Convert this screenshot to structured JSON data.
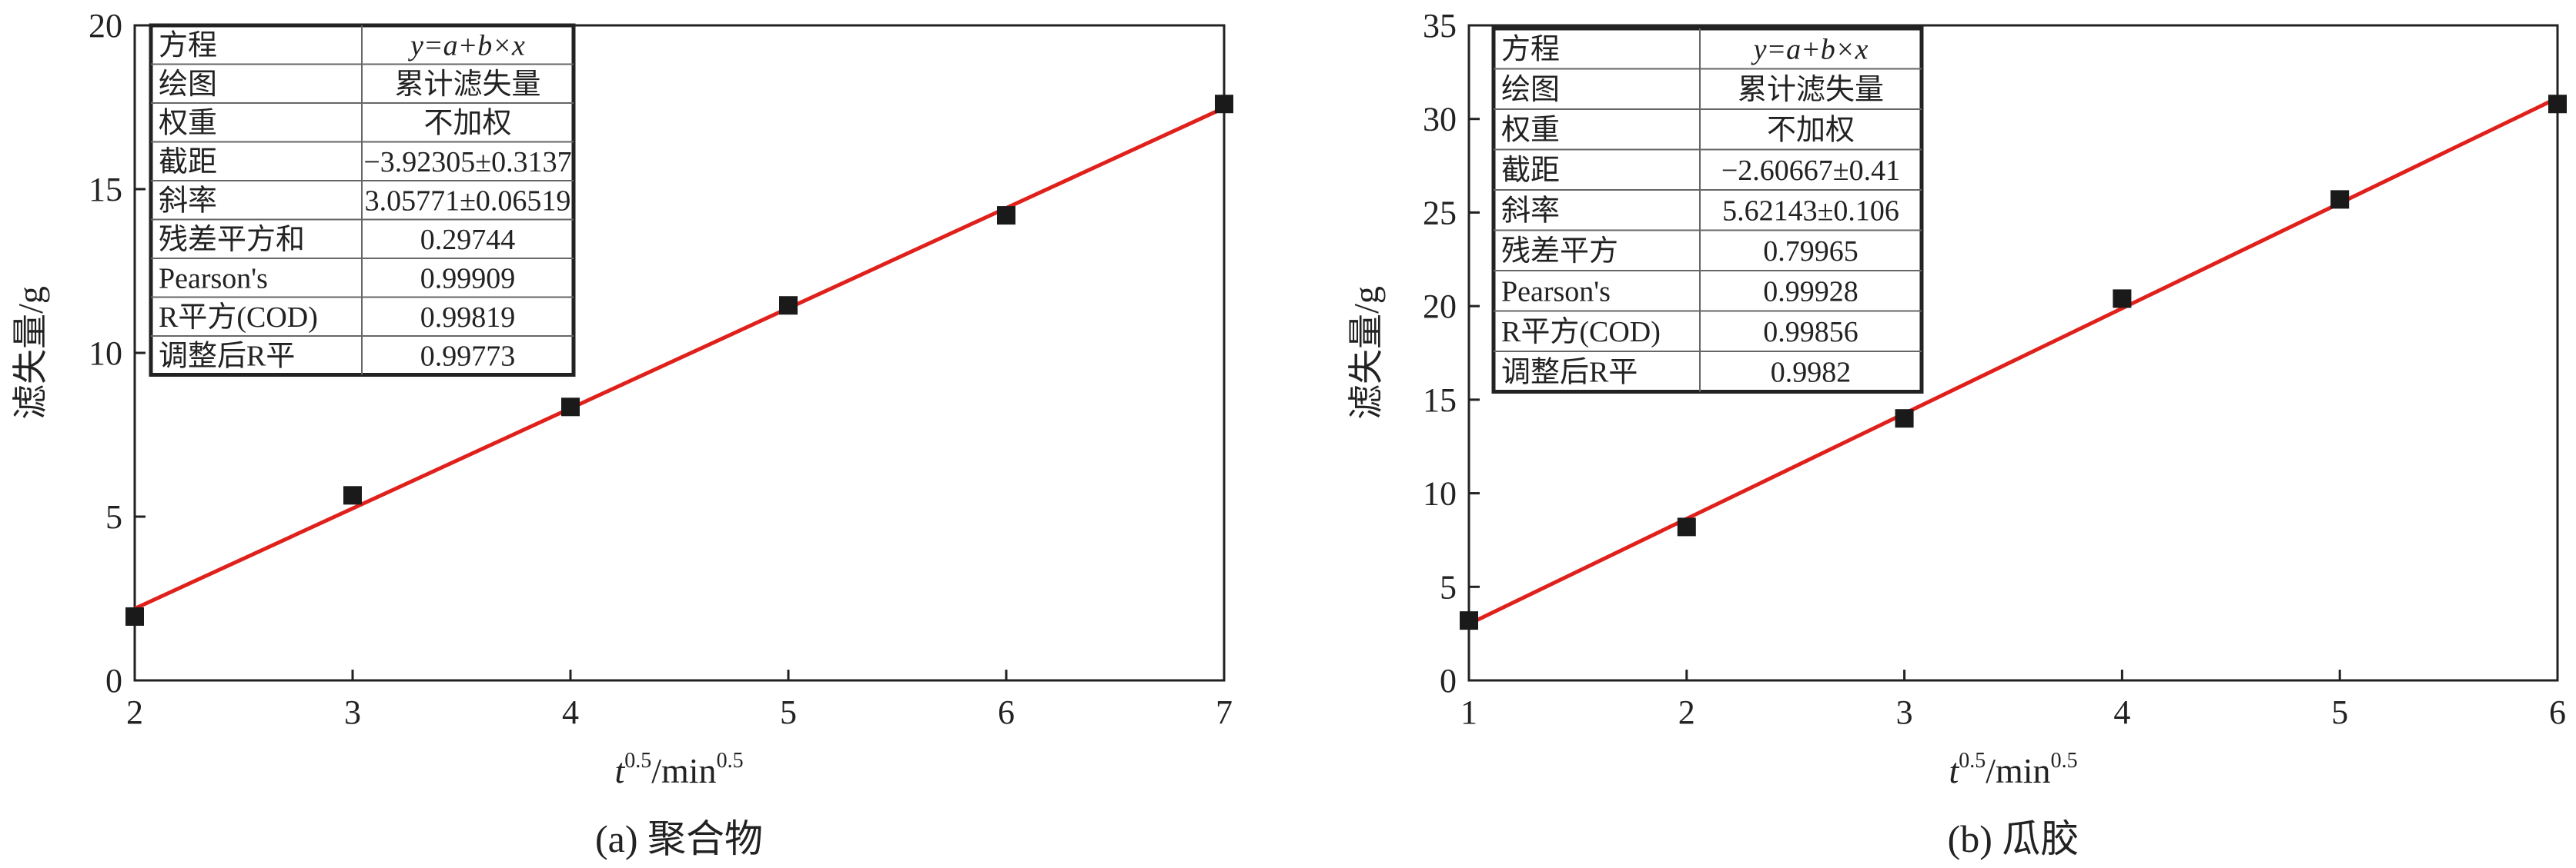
{
  "chart_data": [
    {
      "type": "scatter",
      "caption": "(a) 聚合物",
      "xlabel": {
        "base": "t",
        "sup1": "0.5",
        "mid": "/min",
        "sup2": "0.5"
      },
      "ylabel": "滤失量/g",
      "xlim": [
        2,
        7
      ],
      "ylim": [
        0,
        20
      ],
      "xticks": [
        2,
        3,
        4,
        5,
        6,
        7
      ],
      "yticks": [
        0,
        5,
        10,
        15,
        20
      ],
      "points": [
        {
          "x": 2,
          "y": 1.95
        },
        {
          "x": 3,
          "y": 5.65
        },
        {
          "x": 4,
          "y": 8.35
        },
        {
          "x": 5,
          "y": 11.45
        },
        {
          "x": 6,
          "y": 14.2
        },
        {
          "x": 7,
          "y": 17.6
        }
      ],
      "fit": {
        "intercept": -3.92305,
        "slope": 3.05771,
        "color": "#e0201b"
      },
      "marker_color": "#1a1a1a",
      "table": [
        [
          "方程",
          "y=a+b×x"
        ],
        [
          "绘图",
          "累计滤失量"
        ],
        [
          "权重",
          "不加权"
        ],
        [
          "截距",
          "−3.92305±0.3137"
        ],
        [
          "斜率",
          "3.05771±0.06519"
        ],
        [
          "残差平方和",
          "0.29744"
        ],
        [
          "Pearson's",
          "0.99909"
        ],
        [
          "R平方(COD)",
          "0.99819"
        ],
        [
          "调整后R平",
          "0.99773"
        ]
      ]
    },
    {
      "type": "scatter",
      "caption": "(b) 瓜胶",
      "xlabel": {
        "base": "t",
        "sup1": "0.5",
        "mid": "/min",
        "sup2": "0.5"
      },
      "ylabel": "滤失量/g",
      "xlim": [
        1,
        6
      ],
      "ylim": [
        0,
        35
      ],
      "xticks": [
        1,
        2,
        3,
        4,
        5,
        6
      ],
      "yticks": [
        0,
        5,
        10,
        15,
        20,
        25,
        30,
        35
      ],
      "points": [
        {
          "x": 1,
          "y": 3.2
        },
        {
          "x": 2,
          "y": 8.2
        },
        {
          "x": 3,
          "y": 14.0
        },
        {
          "x": 4,
          "y": 20.4
        },
        {
          "x": 5,
          "y": 25.7
        },
        {
          "x": 6,
          "y": 30.8
        }
      ],
      "fit": {
        "intercept": -2.60667,
        "slope": 5.62143,
        "color": "#e0201b"
      },
      "marker_color": "#1a1a1a",
      "table": [
        [
          "方程",
          "y=a+b×x"
        ],
        [
          "绘图",
          "累计滤失量"
        ],
        [
          "权重",
          "不加权"
        ],
        [
          "截距",
          "−2.60667±0.41"
        ],
        [
          "斜率",
          "5.62143±0.106"
        ],
        [
          "残差平方",
          "0.79965"
        ],
        [
          "Pearson's",
          "0.99928"
        ],
        [
          "R平方(COD)",
          "0.99856"
        ],
        [
          "调整后R平",
          "0.9982"
        ]
      ]
    }
  ]
}
